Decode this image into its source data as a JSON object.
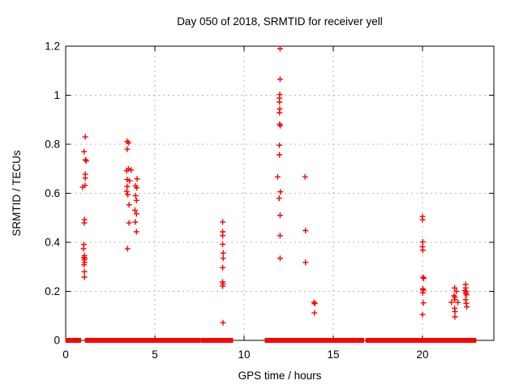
{
  "chart_data": {
    "type": "scatter",
    "title": "Day 050 of 2018, SRMTID for receiver yell",
    "xlabel": "GPS time / hours",
    "ylabel": "SRMTID / TECUs",
    "xlim": [
      0,
      24
    ],
    "ylim": [
      0,
      1.2
    ],
    "xtick_values": [
      0,
      5,
      10,
      15,
      20
    ],
    "xtick_labels": [
      "0",
      "5",
      "10",
      "15",
      "20"
    ],
    "ytick_values": [
      0,
      0.2,
      0.4,
      0.6,
      0.8,
      1,
      1.2
    ],
    "ytick_labels": [
      "0",
      "0.2",
      "0.4",
      "0.6",
      "0.8",
      "1",
      "1.2"
    ],
    "grid": true,
    "legend": "none",
    "marker": "plus",
    "marker_color": "#ff0000",
    "marker_size_px": 7,
    "axis_color": "#000000",
    "grid_color": "#b9b9b9",
    "background": "#ffffff",
    "series": [
      {
        "name": "SRMTID",
        "points": [
          [
            0.95,
            0.625
          ],
          [
            1.0,
            0.374
          ],
          [
            1.02,
            0.391
          ],
          [
            1.02,
            0.338
          ],
          [
            1.03,
            0.77
          ],
          [
            1.03,
            0.308
          ],
          [
            1.04,
            0.479
          ],
          [
            1.04,
            0.328
          ],
          [
            1.05,
            0.345
          ],
          [
            1.05,
            0.28
          ],
          [
            1.05,
            0.258
          ],
          [
            1.06,
            0.493
          ],
          [
            1.06,
            0.318
          ],
          [
            1.07,
            0.335
          ],
          [
            1.08,
            0.632
          ],
          [
            1.1,
            0.83
          ],
          [
            1.1,
            0.678
          ],
          [
            1.1,
            0.662
          ],
          [
            1.11,
            0.737
          ],
          [
            1.15,
            0.732
          ],
          [
            3.45,
            0.812
          ],
          [
            3.52,
            0.806
          ],
          [
            3.45,
            0.78
          ],
          [
            3.52,
            0.7
          ],
          [
            3.42,
            0.692
          ],
          [
            3.67,
            0.695
          ],
          [
            3.45,
            0.656
          ],
          [
            3.58,
            0.651
          ],
          [
            4.0,
            0.659
          ],
          [
            3.45,
            0.628
          ],
          [
            3.92,
            0.63
          ],
          [
            3.98,
            0.622
          ],
          [
            3.42,
            0.608
          ],
          [
            3.48,
            0.594
          ],
          [
            3.92,
            0.59
          ],
          [
            3.97,
            0.571
          ],
          [
            3.55,
            0.553
          ],
          [
            3.88,
            0.531
          ],
          [
            3.97,
            0.516
          ],
          [
            3.55,
            0.479
          ],
          [
            3.9,
            0.483
          ],
          [
            3.97,
            0.443
          ],
          [
            3.47,
            0.374
          ],
          [
            8.8,
            0.483
          ],
          [
            8.8,
            0.443
          ],
          [
            8.8,
            0.427
          ],
          [
            8.8,
            0.392
          ],
          [
            8.83,
            0.356
          ],
          [
            8.83,
            0.335
          ],
          [
            8.8,
            0.297
          ],
          [
            8.79,
            0.238
          ],
          [
            8.82,
            0.23
          ],
          [
            8.8,
            0.221
          ],
          [
            8.82,
            0.072
          ],
          [
            12.02,
            1.19
          ],
          [
            12.02,
            1.065
          ],
          [
            12.0,
            1.003
          ],
          [
            11.98,
            0.988
          ],
          [
            11.98,
            0.972
          ],
          [
            12.0,
            0.944
          ],
          [
            11.98,
            0.929
          ],
          [
            11.99,
            0.882
          ],
          [
            12.03,
            0.876
          ],
          [
            11.98,
            0.796
          ],
          [
            11.98,
            0.757
          ],
          [
            11.88,
            0.667
          ],
          [
            12.03,
            0.606
          ],
          [
            11.97,
            0.58
          ],
          [
            12.02,
            0.51
          ],
          [
            12.02,
            0.427
          ],
          [
            12.02,
            0.335
          ],
          [
            13.42,
            0.667
          ],
          [
            13.44,
            0.448
          ],
          [
            13.44,
            0.318
          ],
          [
            13.92,
            0.155
          ],
          [
            13.97,
            0.15
          ],
          [
            13.94,
            0.112
          ],
          [
            20.0,
            0.505
          ],
          [
            20.0,
            0.492
          ],
          [
            20.02,
            0.402
          ],
          [
            20.0,
            0.382
          ],
          [
            20.02,
            0.368
          ],
          [
            20.03,
            0.258
          ],
          [
            20.07,
            0.253
          ],
          [
            20.02,
            0.21
          ],
          [
            20.04,
            0.205
          ],
          [
            20.02,
            0.194
          ],
          [
            20.05,
            0.153
          ],
          [
            20.0,
            0.105
          ],
          [
            21.8,
            0.214
          ],
          [
            21.9,
            0.2
          ],
          [
            21.77,
            0.182
          ],
          [
            21.82,
            0.176
          ],
          [
            21.8,
            0.166
          ],
          [
            21.62,
            0.155
          ],
          [
            21.98,
            0.155
          ],
          [
            21.8,
            0.131
          ],
          [
            21.82,
            0.117
          ],
          [
            21.82,
            0.096
          ],
          [
            22.42,
            0.228
          ],
          [
            22.42,
            0.214
          ],
          [
            22.38,
            0.203
          ],
          [
            22.45,
            0.198
          ],
          [
            22.42,
            0.192
          ],
          [
            22.47,
            0.186
          ],
          [
            22.42,
            0.166
          ],
          [
            22.45,
            0.151
          ],
          [
            22.48,
            0.137
          ]
        ],
        "zero_value_runs_hours": [
          [
            0.12,
            0.41
          ],
          [
            0.52,
            0.73
          ],
          [
            1.21,
            1.85
          ],
          [
            1.92,
            2.74
          ],
          [
            2.85,
            3.06
          ],
          [
            3.12,
            3.27
          ],
          [
            3.39,
            3.74
          ],
          [
            3.82,
            3.97
          ],
          [
            4.09,
            4.27
          ],
          [
            4.47,
            7.27
          ],
          [
            7.36,
            7.42
          ],
          [
            7.7,
            7.83
          ],
          [
            7.92,
            8.15
          ],
          [
            8.23,
            8.35
          ],
          [
            8.42,
            8.65
          ],
          [
            8.74,
            8.88
          ],
          [
            8.97,
            9.25
          ],
          [
            11.29,
            11.52
          ],
          [
            11.56,
            11.82
          ],
          [
            11.94,
            12.5
          ],
          [
            12.6,
            14.0
          ],
          [
            14.1,
            14.85
          ],
          [
            14.97,
            15.03
          ],
          [
            15.24,
            16.59
          ],
          [
            16.94,
            17.73
          ],
          [
            17.85,
            18.03
          ],
          [
            18.15,
            18.45
          ],
          [
            18.5,
            18.6
          ],
          [
            18.67,
            18.73
          ],
          [
            18.9,
            19.0
          ],
          [
            19.1,
            19.5
          ],
          [
            19.7,
            20.03
          ],
          [
            20.15,
            20.9
          ],
          [
            21.03,
            21.36
          ],
          [
            21.49,
            21.74
          ],
          [
            21.9,
            22.27
          ],
          [
            22.4,
            22.88
          ]
        ]
      }
    ]
  }
}
